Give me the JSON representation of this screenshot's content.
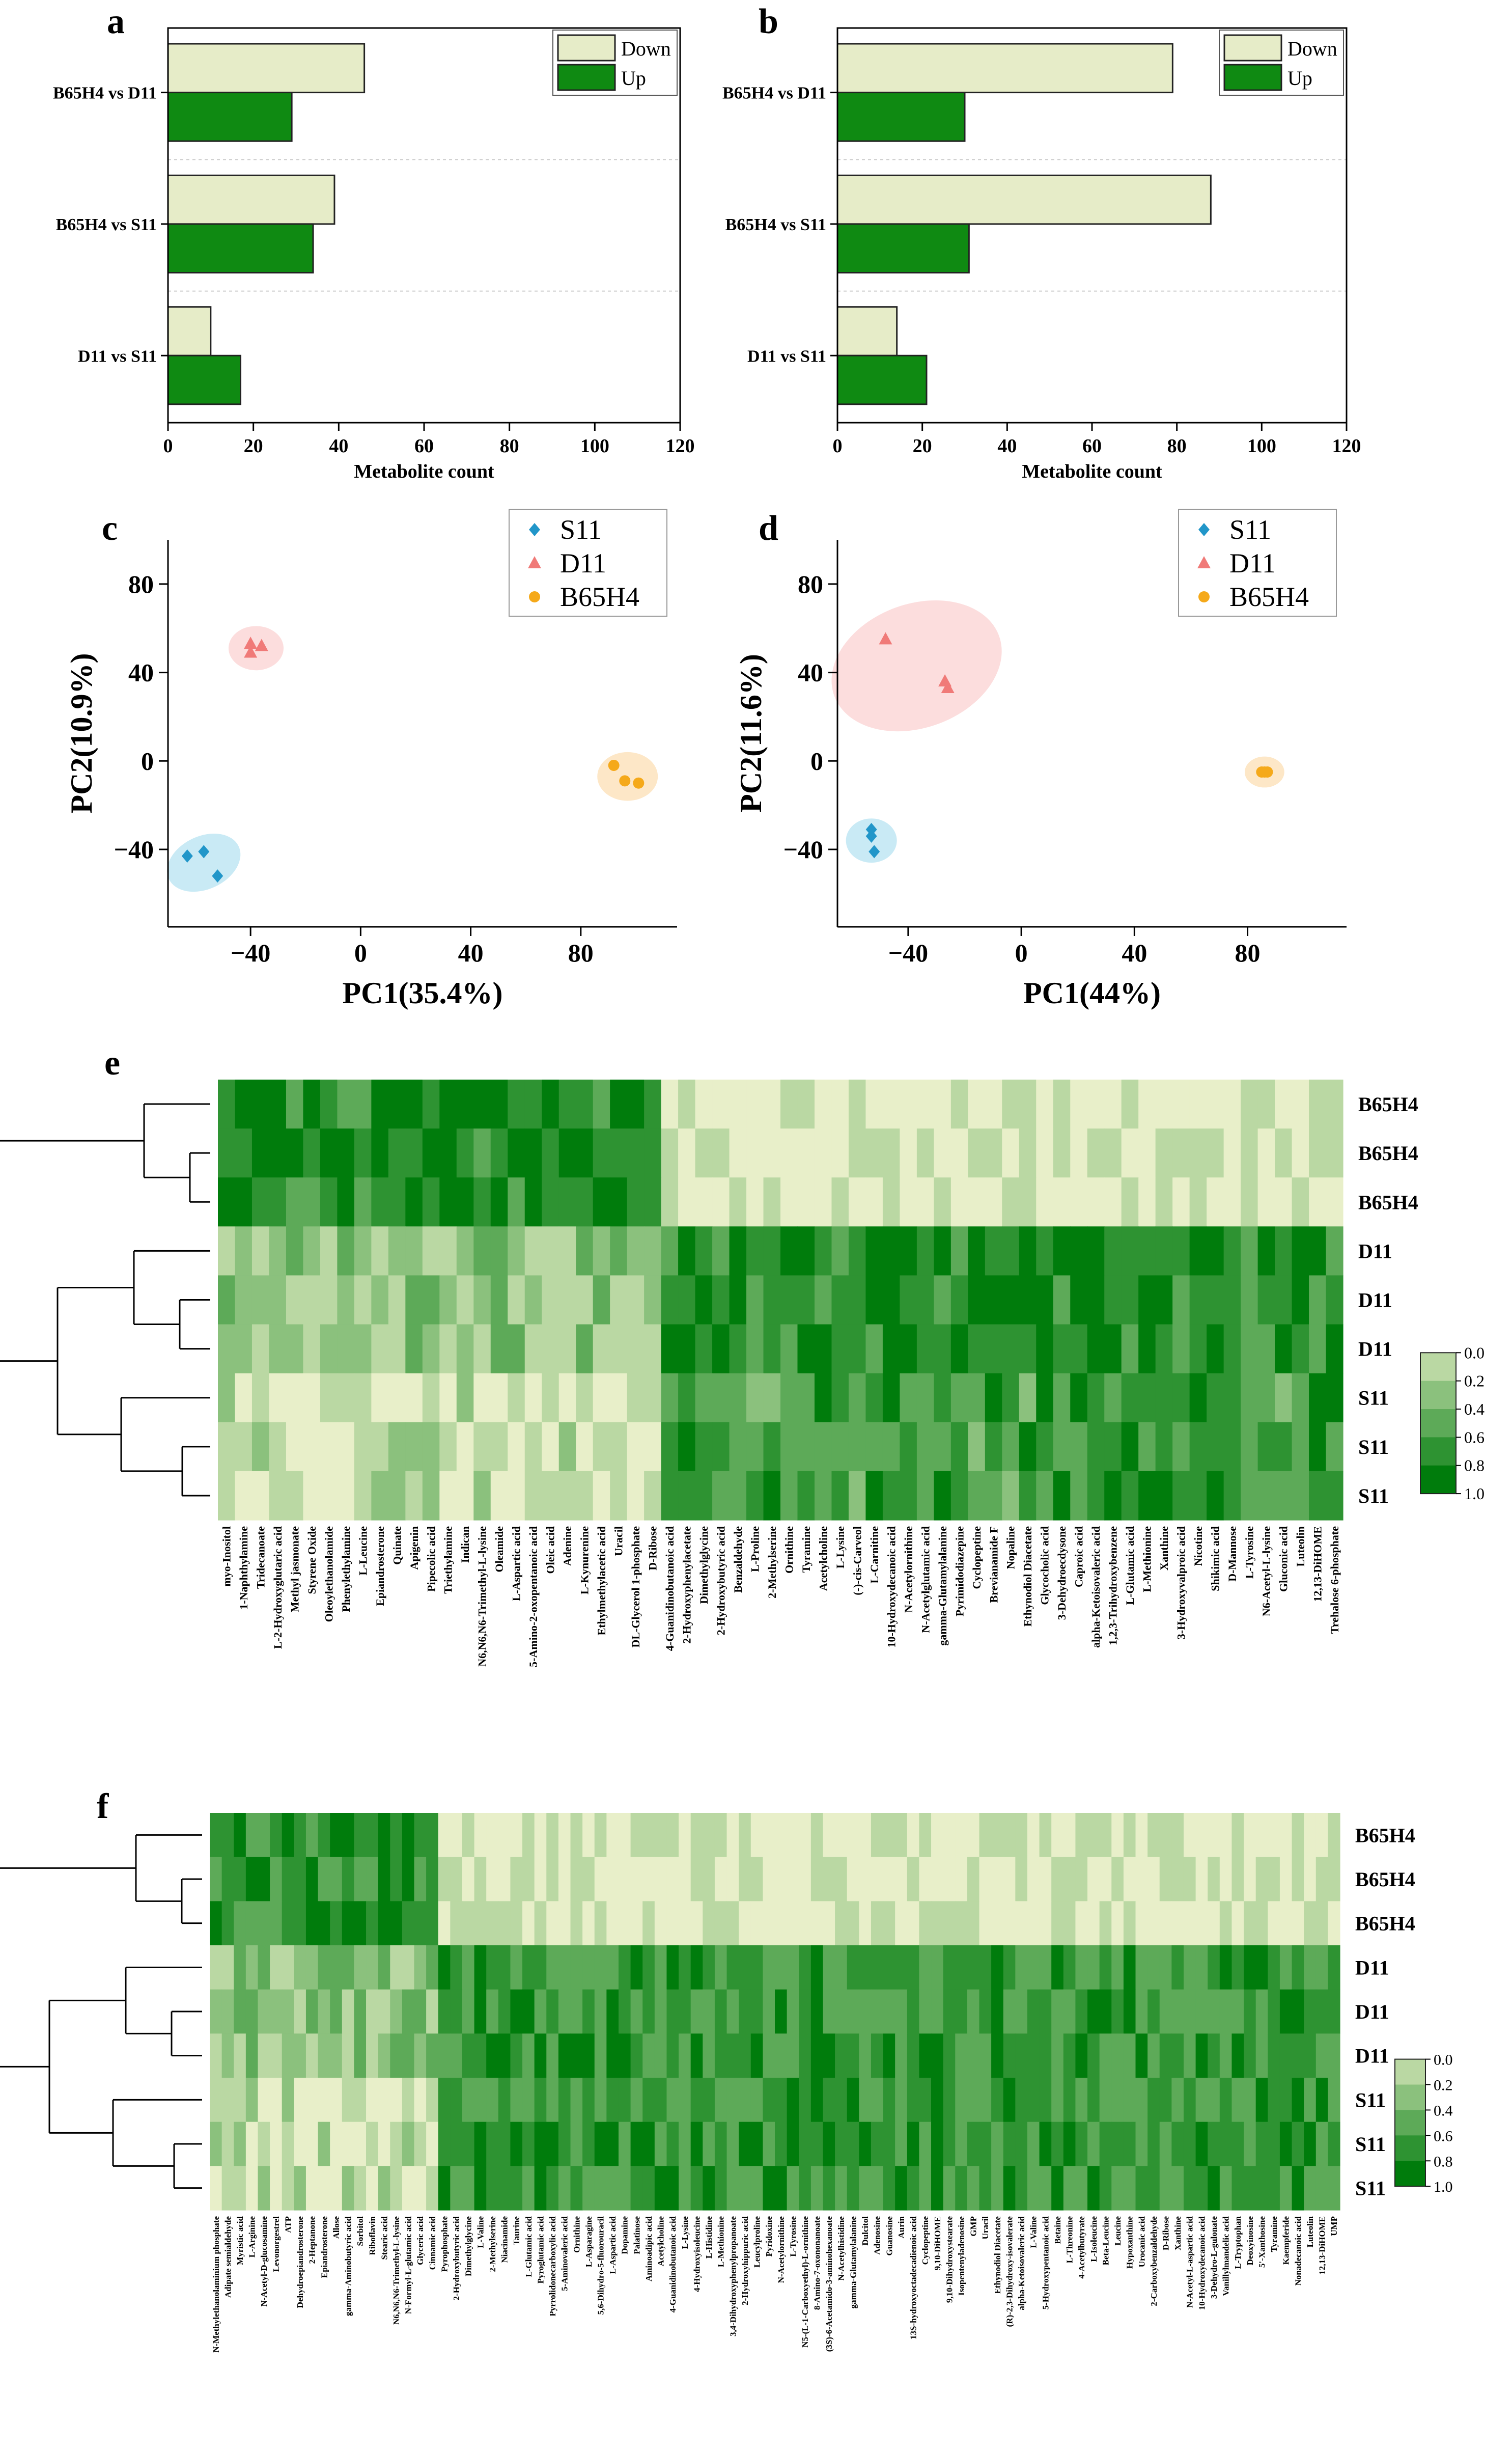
{
  "figure": {
    "panel_letters": [
      "a",
      "b",
      "c",
      "d",
      "e",
      "f"
    ]
  },
  "colors": {
    "down": "#e6ecc8",
    "up": "#0f8a12",
    "s11": "#2196c9",
    "d11": "#f07a78",
    "b65h4": "#f5a91a",
    "s11_ellipse": "#bfe6f3",
    "d11_ellipse": "#fbd7d7",
    "b65h4_ellipse": "#fde3bd",
    "heat_low": "#e8efc9",
    "heat_high": "#007c0c"
  },
  "chart_data": [
    {
      "panel": "a",
      "type": "bar",
      "orientation": "horizontal",
      "categories": [
        "B65H4 vs D11",
        "B65H4 vs S11",
        "D11 vs S11"
      ],
      "series": [
        {
          "name": "Down",
          "values": [
            46,
            39,
            10
          ]
        },
        {
          "name": "Up",
          "values": [
            29,
            34,
            17
          ]
        }
      ],
      "xlabel": "Metabolite count",
      "xlim": [
        0,
        120
      ],
      "xticks": [
        "0",
        "20",
        "40",
        "60",
        "80",
        "100",
        "120"
      ],
      "legend": [
        "Down",
        "Up"
      ],
      "legend_position": "top-right"
    },
    {
      "panel": "b",
      "type": "bar",
      "orientation": "horizontal",
      "categories": [
        "B65H4 vs D11",
        "B65H4 vs S11",
        "D11 vs S11"
      ],
      "series": [
        {
          "name": "Down",
          "values": [
            79,
            88,
            14
          ]
        },
        {
          "name": "Up",
          "values": [
            30,
            31,
            21
          ]
        }
      ],
      "xlabel": "Metabolite count",
      "xlim": [
        0,
        120
      ],
      "xticks": [
        "0",
        "20",
        "40",
        "60",
        "80",
        "100",
        "120"
      ],
      "legend": [
        "Down",
        "Up"
      ],
      "legend_position": "top-right"
    },
    {
      "panel": "c",
      "type": "scatter",
      "xlabel": "PC1(35.4%)",
      "ylabel": "PC2(10.9%)",
      "xlim": [
        -70,
        115
      ],
      "ylim": [
        -75,
        100
      ],
      "xticks": [
        "−40",
        "0",
        "40",
        "80"
      ],
      "yticks": [
        "80",
        "40",
        "0",
        "−40"
      ],
      "legend_position": "top-right",
      "series": [
        {
          "name": "S11",
          "marker": "diamond",
          "points": [
            [
              -63,
              -43
            ],
            [
              -57,
              -41
            ],
            [
              -52,
              -52
            ]
          ],
          "ellipse": {
            "cx": -57,
            "cy": -46,
            "rx": 14,
            "ry": 12,
            "angle": -25
          }
        },
        {
          "name": "D11",
          "marker": "triangle",
          "points": [
            [
              -40,
              53
            ],
            [
              -40,
              49
            ],
            [
              -36,
              52
            ]
          ],
          "ellipse": {
            "cx": -38,
            "cy": 51,
            "rx": 10,
            "ry": 10,
            "angle": 0
          }
        },
        {
          "name": "B65H4",
          "marker": "circle",
          "points": [
            [
              92,
              -2
            ],
            [
              96,
              -9
            ],
            [
              101,
              -10
            ]
          ],
          "ellipse": {
            "cx": 97,
            "cy": -7,
            "rx": 11,
            "ry": 11,
            "angle": 0
          }
        }
      ]
    },
    {
      "panel": "d",
      "type": "scatter",
      "xlabel": "PC1(44%)",
      "ylabel": "PC2(11.6%)",
      "xlim": [
        -65,
        115
      ],
      "ylim": [
        -75,
        100
      ],
      "xticks": [
        "−40",
        "0",
        "40",
        "80"
      ],
      "yticks": [
        "80",
        "40",
        "0",
        "−40"
      ],
      "legend_position": "top-right",
      "series": [
        {
          "name": "S11",
          "marker": "diamond",
          "points": [
            [
              -53,
              -31
            ],
            [
              -53,
              -34
            ],
            [
              -52,
              -41
            ]
          ],
          "ellipse": {
            "cx": -53,
            "cy": -36,
            "rx": 9,
            "ry": 10,
            "angle": 0
          }
        },
        {
          "name": "D11",
          "marker": "triangle",
          "points": [
            [
              -48,
              55
            ],
            [
              -27,
              36
            ],
            [
              -26,
              33
            ]
          ],
          "ellipse": {
            "cx": -37,
            "cy": 43,
            "rx": 31,
            "ry": 28,
            "angle": -20
          }
        },
        {
          "name": "B65H4",
          "marker": "circle",
          "points": [
            [
              85,
              -5
            ],
            [
              86,
              -5
            ],
            [
              87,
              -5
            ]
          ],
          "ellipse": {
            "cx": 86,
            "cy": -5,
            "rx": 7,
            "ry": 7,
            "angle": 0
          }
        }
      ]
    },
    {
      "panel": "e",
      "type": "heatmap",
      "rows": [
        "B65H4",
        "B65H4",
        "B65H4",
        "D11",
        "D11",
        "D11",
        "S11",
        "S11",
        "S11"
      ],
      "columns": [
        "myo-Inositol",
        "1-Naphthylamine",
        "Tridecanoate",
        "L-2-Hydroxyglutaric acid",
        "Methyl jasmonate",
        "Styrene Oxide",
        "Oleoylethanolamide",
        "Phenylethylamine",
        "L-Leucine",
        "Epiandrosterone",
        "Quinate",
        "Apigenin",
        "Pipecolic acid",
        "Triethylamine",
        "Indican",
        "N6,N6,N6-Trimethyl-L-lysine",
        "Oleamide",
        "L-Aspartic acid",
        "5-Amino-2-oxopentanoic acid",
        "Oleic acid",
        "Adenine",
        "L-Kynurenine",
        "Ethylmethylacetic acid",
        "Uracil",
        "DL-Glycerol 1-phosphate",
        "D-Ribose",
        "4-Guanidinobutanoic acid",
        "2-Hydroxyphenylacetate",
        "Dimethylglycine",
        "2-Hydroxybutyric acid",
        "Benzaldehyde",
        "L-Proline",
        "2-Methylserine",
        "Ornithine",
        "Tyramine",
        "Acetylcholine",
        "L-Lysine",
        "(-)-cis-Carveol",
        "L-Carnitine",
        "10-Hydroxydecanoic acid",
        "N-Acetylornithine",
        "N-Acetylglutamic acid",
        "gamma-Glutamylalanine",
        "Pyrimidodiazepine",
        "Cyclopeptine",
        "Brevianamide F",
        "Nopaline",
        "Ethynodiol Diacetate",
        "Glycocholic acid",
        "3-Dehydroecdysone",
        "Caproic acid",
        "alpha-Ketoisovaleric acid",
        "1,2,3-Trihydroxybenzene",
        "L-Glutamic acid",
        "L-Methionine",
        "Xanthine",
        "3-Hydroxyvalproic acid",
        "Nicotine",
        "Shikimic acid",
        "D-Mannose",
        "L-Tyrosine",
        "N6-Acetyl-L-lysine",
        "Gluconic acid",
        "Luteolin",
        "12,13-DiHOME",
        "Trehalose 6-phosphate"
      ],
      "colorbar": {
        "ticks": [
          "0.0",
          "0.2",
          "0.4",
          "0.6",
          "0.8",
          "1.0"
        ],
        "range": [
          0,
          1
        ]
      },
      "row_dendrogram": true
    },
    {
      "panel": "f",
      "type": "heatmap",
      "rows": [
        "B65H4",
        "B65H4",
        "B65H4",
        "D11",
        "D11",
        "D11",
        "S11",
        "S11",
        "S11"
      ],
      "columns": [
        "N-Methylethanolaminium phosphate",
        "Adipate semialdehyde",
        "Myristic acid",
        "L-Arginine",
        "N-Acetyl-D-glucosamine",
        "Levonorgestrel",
        "ATP",
        "Dehydroepiandrosterone",
        "2-Heptanone",
        "Epiandrosterone",
        "Allose",
        "gamma-Aminobutyric acid",
        "Sorbitol",
        "Riboflavin",
        "Stearic acid",
        "N6,N6,N6-Trimethyl-L-lysine",
        "N-Formyl-L-glutamic acid",
        "Glyceric acid",
        "Cinnamic acid",
        "Pyrophosphate",
        "2-Hydroxybutyric acid",
        "Dimethylglycine",
        "L-Valine",
        "2-Methylserine",
        "Niacinamide",
        "Taurine",
        "L-Glutamic acid",
        "Pyroglutamic acid",
        "Pyrrolidonecarboxylic acid",
        "5-Aminovaleric acid",
        "Ornithine",
        "L-Asparagine",
        "5,6-Dihydro-5-fluorouracil",
        "L-Aspartic acid",
        "Dopamine",
        "Palatinose",
        "Aminoadipic acid",
        "Acetylcholine",
        "4-Guanidinobutanoic acid",
        "L-Lysine",
        "4-Hydroxyisoleucine",
        "L-Histidine",
        "L-Methionine",
        "3,4-Dihydroxyphenylpropanoate",
        "2-Hydroxyhippuric acid",
        "Leucylproline",
        "Pyridoxine",
        "N-Acetylornithine",
        "L-Tyrosine",
        "N5-(L-1-Carboxyethyl)-L-ornithine",
        "8-Amino-7-oxononanoate",
        "(3S)-6-Acetamido-3-aminohexanoate",
        "N-Acetylhistidine",
        "gamma-Glutamylalanine",
        "Dulcitol",
        "Adenosine",
        "Guanosine",
        "Aurin",
        "13S-hydroxyoctadecadienoic acid",
        "Cyclopeptine",
        "9,10-DiHOME",
        "9,10-Dihydroxystearate",
        "Isopentenyladenosine",
        "GMP",
        "Uracil",
        "Ethynodiol Diacetate",
        "(R)-2,3-Dihydroxy-isovalerate",
        "alpha-Ketoisovaleric acid",
        "L-Valine",
        "5-Hydroxypentanoic acid",
        "Betaine",
        "L-Threonine",
        "4-Acetylbutyrate",
        "L-Isoleucine",
        "Beta-Leucine",
        "Leucine",
        "Hypoxanthine",
        "Urocanic acid",
        "2-Carboxybenzaldehyde",
        "D-Ribose",
        "Xanthine",
        "N-Acetyl-L-aspartic acid",
        "10-Hydroxydecanoic acid",
        "3-Dehydro-L-gulonate",
        "Vanillylmandelic acid",
        "L-Tryptophan",
        "Deoxyinosine",
        "5'-Xanthosine",
        "Tyramine",
        "Kaempferide",
        "Nonadecanoic acid",
        "Luteolin",
        "12,13-DiHOME",
        "UMP"
      ],
      "colorbar": {
        "ticks": [
          "0.0",
          "0.2",
          "0.4",
          "0.6",
          "0.8",
          "1.0"
        ],
        "range": [
          0,
          1
        ]
      },
      "row_dendrogram": true
    }
  ]
}
